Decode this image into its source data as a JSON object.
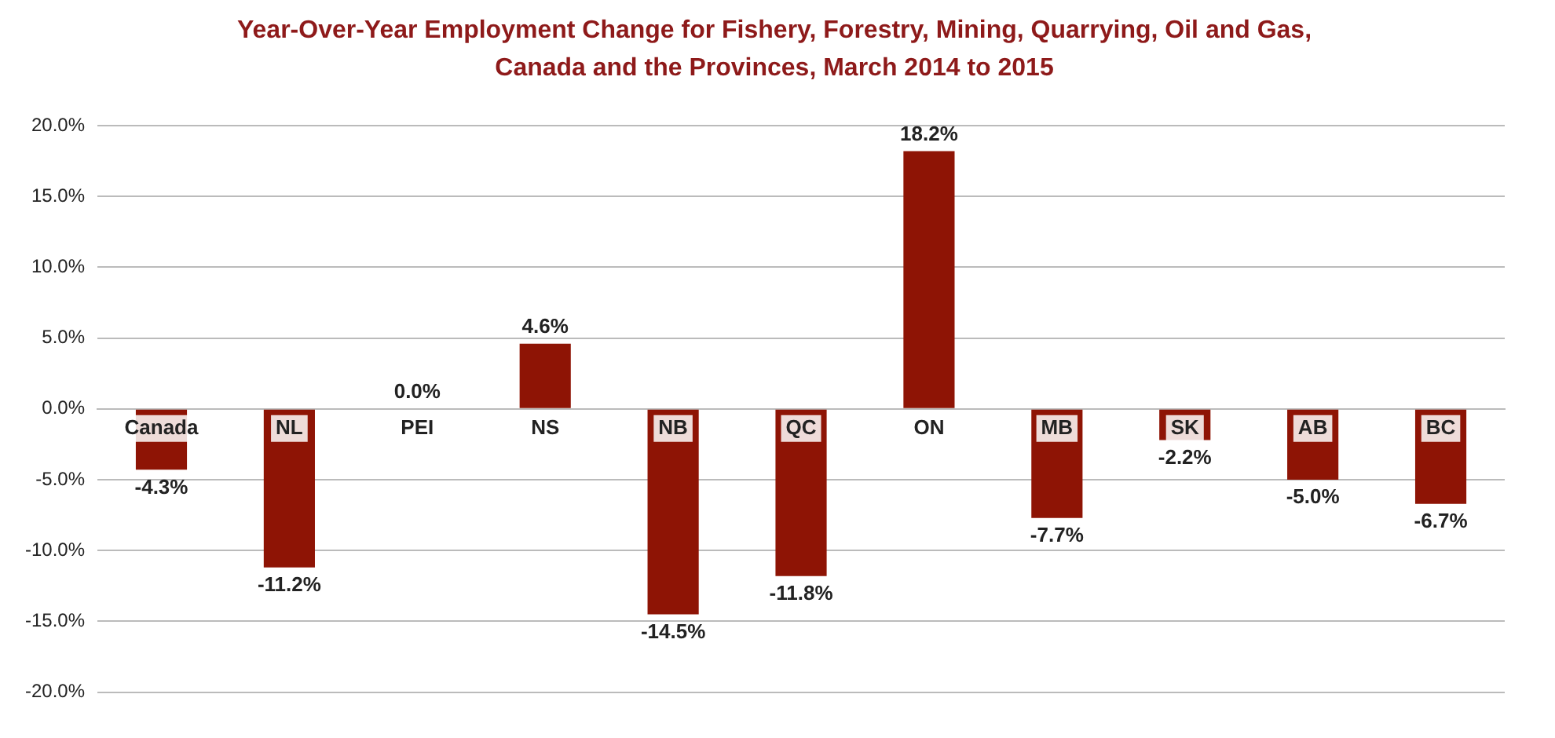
{
  "chart_data": {
    "type": "bar",
    "title": "Year-Over-Year Employment Change for Fishery, Forestry, Mining, Quarrying, Oil and Gas, Canada and the Provinces, March 2014 to 2015",
    "categories": [
      "Canada",
      "NL",
      "PEI",
      "NS",
      "NB",
      "QC",
      "ON",
      "MB",
      "SK",
      "AB",
      "BC"
    ],
    "values": [
      -4.3,
      -11.2,
      0.0,
      4.6,
      -14.5,
      -11.8,
      18.2,
      -7.7,
      -2.2,
      -5.0,
      -6.7
    ],
    "value_labels": [
      "-4.3%",
      "-11.2%",
      "0.0%",
      "4.6%",
      "-14.5%",
      "-11.8%",
      "18.2%",
      "-7.7%",
      "-2.2%",
      "-5.0%",
      "-6.7%"
    ],
    "color": "#8e1405",
    "ylim": [
      -20,
      20
    ],
    "yticks": [
      {
        "value": -20,
        "label": "-20.0%"
      },
      {
        "value": -15,
        "label": "-15.0%"
      },
      {
        "value": -10,
        "label": "-10.0%"
      },
      {
        "value": -5,
        "label": "-5.0%"
      },
      {
        "value": 0,
        "label": "0.0%"
      },
      {
        "value": 5,
        "label": "5.0%"
      },
      {
        "value": 10,
        "label": "10.0%"
      },
      {
        "value": 15,
        "label": "15.0%"
      },
      {
        "value": 20,
        "label": "20.0%"
      }
    ],
    "grid": "y",
    "legend": false
  }
}
